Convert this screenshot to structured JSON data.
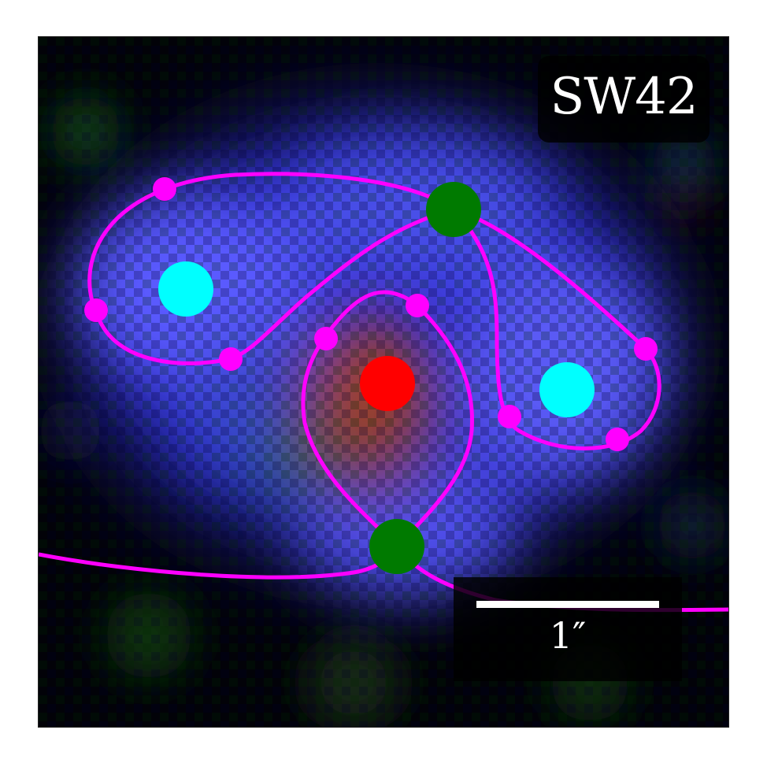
{
  "figure": {
    "object_name": "SW42",
    "scale_bar_label": "1″"
  },
  "colors": {
    "critical_curve": "#ff00ff",
    "lens_galaxy": "#ff0000",
    "source_positions": "#00ffff",
    "merged_images": "#007a00",
    "image_points": "#ff00ff"
  },
  "icons": [
    "lens-galaxy-marker",
    "source-marker",
    "critical-point-marker",
    "image-point-marker"
  ]
}
